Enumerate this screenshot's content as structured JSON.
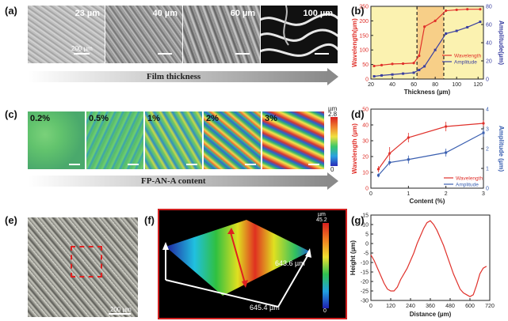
{
  "panels": {
    "a": {
      "label": "(a)",
      "tiles": [
        "23 µm",
        "40 µm",
        "60 µm",
        "100 µm"
      ],
      "scale_bar": "200 µm",
      "arrow_text": "Film thickness"
    },
    "b": {
      "label": "(b)"
    },
    "c": {
      "label": "(c)",
      "tiles": [
        "0.2%",
        "0.5%",
        "1%",
        "2%",
        "3%"
      ],
      "colorbar_unit": "µm",
      "colorbar_max": "2.8",
      "colorbar_min": "0",
      "arrow_text": "FP-AN-A content"
    },
    "d": {
      "label": "(d)"
    },
    "e": {
      "label": "(e)",
      "scale_bar": "200 µm"
    },
    "f": {
      "label": "(f)",
      "colorbar_unit": "µm",
      "colorbar_max": "45.2",
      "colorbar_min": "0",
      "dim_right": "643.6 µm",
      "dim_bottom": "645.4 µm"
    },
    "g": {
      "label": "(g)"
    }
  },
  "chart_data": [
    {
      "panel": "b",
      "type": "line",
      "xlabel": "Thickness (µm)",
      "ylabel": "Wavelength(µm)",
      "y2label": "Amplitude(µm)",
      "xlim": [
        20,
        125
      ],
      "ylim": [
        0,
        250
      ],
      "y2lim": [
        0,
        80
      ],
      "xticks": [
        20,
        40,
        60,
        80,
        100,
        120
      ],
      "yticks": [
        0,
        50,
        100,
        150,
        200,
        250
      ],
      "y2ticks": [
        0,
        20,
        40,
        60,
        80
      ],
      "shaded_regions": [
        [
          20,
          63,
          "#fbf2b0"
        ],
        [
          63,
          88,
          "#f7cf88"
        ],
        [
          88,
          125,
          "#fbf2b0"
        ]
      ],
      "legend_position": "center-right",
      "series": [
        {
          "name": "Wavelength",
          "axis": "left",
          "color": "#e0312b",
          "x": [
            23,
            30,
            40,
            50,
            60,
            65,
            70,
            80,
            90,
            100,
            110,
            122
          ],
          "y": [
            45,
            48,
            52,
            53,
            55,
            80,
            180,
            200,
            235,
            238,
            240,
            240
          ]
        },
        {
          "name": "Amplitude",
          "axis": "right",
          "color": "#3a3fa0",
          "x": [
            23,
            30,
            40,
            50,
            60,
            65,
            70,
            80,
            90,
            100,
            110,
            122
          ],
          "y": [
            3,
            4,
            5,
            6,
            7,
            10,
            14,
            32,
            50,
            53,
            57,
            63
          ]
        }
      ]
    },
    {
      "panel": "d",
      "type": "line",
      "xlabel": "Content (%)",
      "ylabel": "Wavelength (µm)",
      "y2label": "Amplitude (µm)",
      "xlim": [
        0,
        3
      ],
      "ylim": [
        0,
        50
      ],
      "y2lim": [
        0,
        4
      ],
      "xticks": [
        0,
        1,
        2,
        3
      ],
      "yticks": [
        0,
        10,
        20,
        30,
        40,
        50
      ],
      "y2ticks": [
        0,
        1,
        2,
        3,
        4
      ],
      "legend_position": "lower-right",
      "series": [
        {
          "name": "Wavelength",
          "axis": "left",
          "color": "#e0312b",
          "x": [
            0.2,
            0.5,
            1,
            2,
            3
          ],
          "y": [
            12,
            22,
            32,
            39,
            41
          ],
          "err": [
            2,
            4,
            3,
            3,
            2
          ]
        },
        {
          "name": "Amplitude",
          "axis": "right",
          "color": "#3a5fb0",
          "x": [
            0.2,
            0.5,
            1,
            2,
            3
          ],
          "y": [
            0.65,
            1.3,
            1.45,
            1.8,
            2.8
          ],
          "err": [
            0.1,
            0.15,
            0.2,
            0.2,
            0.2
          ]
        }
      ]
    },
    {
      "panel": "g",
      "type": "line",
      "xlabel": "Distance (µm)",
      "ylabel": "Height (µm)",
      "xlim": [
        0,
        720
      ],
      "ylim": [
        -30,
        15
      ],
      "xticks": [
        0,
        120,
        240,
        360,
        480,
        600,
        720
      ],
      "yticks": [
        -30,
        -25,
        -20,
        -15,
        -10,
        -5,
        0,
        5,
        10,
        15
      ],
      "series": [
        {
          "color": "#e0312b",
          "x": [
            0,
            20,
            40,
            60,
            80,
            100,
            120,
            140,
            160,
            180,
            200,
            220,
            240,
            260,
            280,
            300,
            320,
            340,
            360,
            380,
            400,
            420,
            440,
            460,
            480,
            500,
            520,
            540,
            560,
            580,
            600,
            620,
            640,
            660,
            680,
            700
          ],
          "y": [
            -6,
            -9,
            -13,
            -17,
            -21,
            -24,
            -25,
            -25,
            -23,
            -19,
            -16,
            -13,
            -9,
            -5,
            0,
            4,
            8,
            11,
            12,
            10,
            7,
            3,
            -1,
            -6,
            -11,
            -16,
            -20,
            -24,
            -26,
            -27,
            -28,
            -27,
            -22,
            -16,
            -13,
            -12
          ]
        }
      ]
    }
  ]
}
